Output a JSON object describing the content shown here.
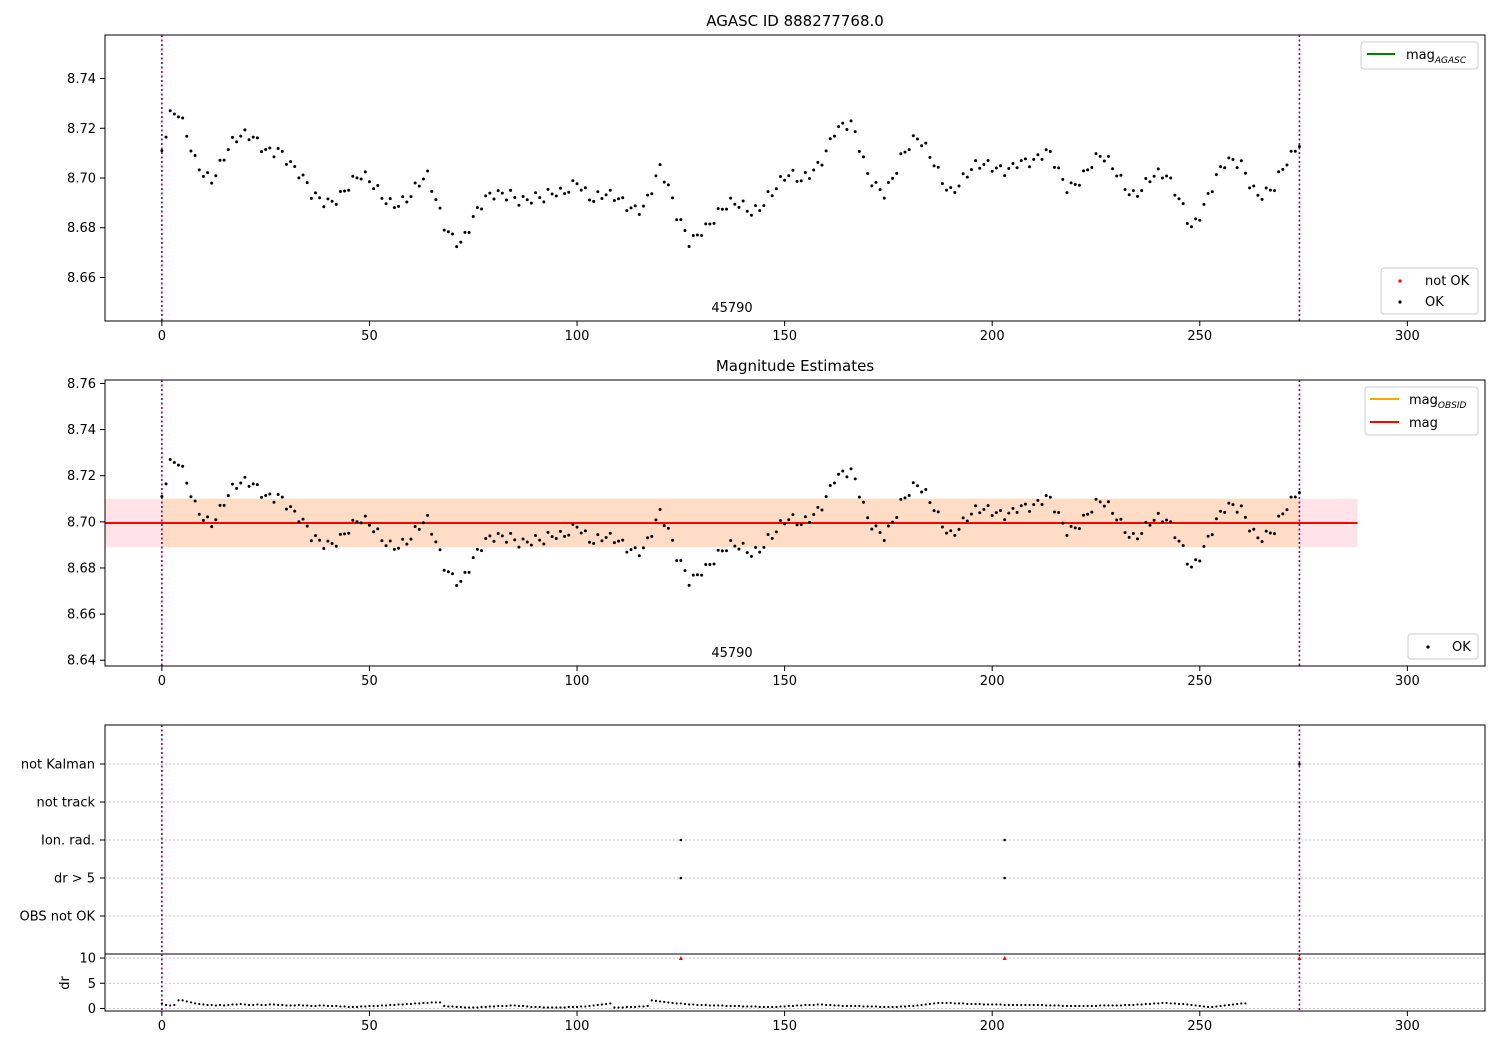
{
  "figure": {
    "background": "#ffffff"
  },
  "chart_data": [
    {
      "type": "scatter",
      "title": "AGASC ID 888277768.0",
      "annotation": "45790",
      "xticks": [
        0,
        50,
        100,
        150,
        200,
        250,
        300
      ],
      "xlim": [
        -13.7,
        318.7
      ],
      "ylim": [
        8.6425,
        8.7575
      ],
      "yticks": [
        "8.66",
        "8.68",
        "8.70",
        "8.72",
        "8.74"
      ],
      "vlines": [
        0,
        274
      ],
      "colors": {
        "ok": "#000000",
        "not_ok": "#ff0000",
        "mag_agasc": "#008000",
        "vline": "#800080"
      },
      "legend_upper": {
        "position": "top-right",
        "entries": [
          {
            "label": "mag",
            "sub": "AGASC",
            "color": "#008000",
            "kind": "line"
          }
        ]
      },
      "legend_lower": {
        "position": "bottom-right",
        "entries": [
          {
            "label": "not OK",
            "color": "#ff0000",
            "kind": "point"
          },
          {
            "label": "OK",
            "color": "#000000",
            "kind": "point"
          }
        ]
      }
    },
    {
      "type": "scatter",
      "title": "Magnitude Estimates",
      "annotation": "45790",
      "xticks": [
        0,
        50,
        100,
        150,
        200,
        250,
        300
      ],
      "xlim": [
        -13.7,
        318.7
      ],
      "ylim": [
        8.6375,
        8.7615
      ],
      "yticks": [
        "8.64",
        "8.66",
        "8.68",
        "8.70",
        "8.72",
        "8.74",
        "8.76"
      ],
      "vlines": [
        0,
        274
      ],
      "mag_line": 8.6995,
      "mag_band": [
        8.689,
        8.71
      ],
      "mag_obsid_line": 8.6995,
      "mag_obsid_band": [
        8.689,
        8.71
      ],
      "band_x_range": [
        -13.7,
        288
      ],
      "colors": {
        "ok": "#000000",
        "mag": "#ff0000",
        "mag_band": "#ffc0cb",
        "mag_obsid": "#ffa500",
        "mag_obsid_band": "#ffdab9",
        "vline": "#800080"
      },
      "legend_upper": {
        "position": "top-right",
        "entries": [
          {
            "label": "mag",
            "sub": "OBSID",
            "color": "#ffa500",
            "kind": "line"
          },
          {
            "label": "mag",
            "sub": "",
            "color": "#ff0000",
            "kind": "line"
          }
        ]
      },
      "legend_lower": {
        "position": "bottom-right",
        "entries": [
          {
            "label": "OK",
            "color": "#000000",
            "kind": "point"
          }
        ]
      }
    },
    {
      "type": "scatter",
      "categories": [
        "not Kalman",
        "not track",
        "Ion. rad.",
        "dr > 5",
        "OBS not OK"
      ],
      "xticks": [
        0,
        50,
        100,
        150,
        200,
        250,
        300
      ],
      "xlim": [
        -13.7,
        318.7
      ],
      "vlines": [
        0,
        274
      ],
      "flags": [
        {
          "category": "not Kalman",
          "x": [
            274
          ]
        },
        {
          "category": "Ion. rad.",
          "x": [
            125,
            203
          ]
        },
        {
          "category": "dr > 5",
          "x": [
            125,
            203
          ]
        }
      ]
    },
    {
      "type": "scatter",
      "ylabel": "dr",
      "xticks": [
        0,
        50,
        100,
        150,
        200,
        250,
        300
      ],
      "xlim": [
        -13.7,
        318.7
      ],
      "ylim": [
        -0.5,
        10.8
      ],
      "yticks": [
        "0",
        "5",
        "10"
      ],
      "vlines": [
        0,
        274
      ],
      "capped_x": [
        125,
        203,
        274
      ],
      "capped_y": 10,
      "dr_values": [
        1.0,
        0.7,
        0.6,
        0.7,
        1.6,
        1.6,
        1.4,
        1.2,
        1.0,
        0.9,
        0.8,
        0.7,
        0.7,
        0.6,
        0.7,
        0.6,
        0.7,
        0.8,
        0.8,
        0.9,
        0.8,
        0.7,
        0.7,
        0.8,
        0.7,
        0.7,
        0.8,
        0.8,
        0.7,
        0.7,
        0.6,
        0.6,
        0.6,
        0.7,
        0.6,
        0.6,
        0.5,
        0.5,
        0.6,
        0.6,
        0.5,
        0.5,
        0.5,
        0.4,
        0.4,
        0.3,
        0.3,
        0.3,
        0.4,
        0.4,
        0.5,
        0.5,
        0.5,
        0.6,
        0.6,
        0.7,
        0.7,
        0.8,
        0.8,
        0.9,
        0.9,
        1.0,
        1.0,
        1.1,
        1.1,
        1.2,
        1.2,
        1.2,
        0.5,
        0.4,
        0.4,
        0.3,
        0.3,
        0.2,
        0.2,
        0.2,
        0.2,
        0.3,
        0.3,
        0.4,
        0.4,
        0.5,
        0.5,
        0.5,
        0.6,
        0.6,
        0.5,
        0.5,
        0.4,
        0.3,
        0.3,
        0.3,
        0.2,
        0.2,
        0.2,
        0.2,
        0.2,
        0.2,
        0.3,
        0.3,
        0.3,
        0.4,
        0.4,
        0.5,
        0.6,
        0.7,
        0.8,
        0.9,
        1.0,
        0.2,
        0.2,
        0.2,
        0.3,
        0.3,
        0.3,
        0.4,
        0.4,
        0.5,
        1.6,
        1.5,
        1.4,
        1.3,
        1.2,
        1.1,
        1.0,
        1.0,
        0.9,
        0.8,
        0.8,
        0.7,
        0.7,
        0.7,
        0.6,
        0.6,
        0.6,
        0.6,
        0.5,
        0.5,
        0.5,
        0.5,
        0.4,
        0.4,
        0.4,
        0.4,
        0.3,
        0.3,
        0.3,
        0.3,
        0.3,
        0.4,
        0.4,
        0.5,
        0.5,
        0.6,
        0.6,
        0.7,
        0.7,
        0.7,
        0.8,
        0.8,
        0.7,
        0.7,
        0.6,
        0.6,
        0.5,
        0.5,
        0.5,
        0.5,
        0.5,
        0.4,
        0.4,
        0.4,
        0.4,
        0.3,
        0.3,
        0.3,
        0.3,
        0.3,
        0.4,
        0.4,
        0.5,
        0.5,
        0.6,
        0.7,
        0.8,
        0.9,
        1.0,
        1.1,
        1.1,
        1.1,
        1.1,
        1.0,
        1.0,
        1.0,
        0.9,
        0.9,
        0.9,
        0.9,
        0.8,
        0.8,
        0.8,
        0.8,
        0.8,
        0.7,
        0.7,
        0.7,
        0.7,
        0.7,
        0.7,
        0.7,
        0.7,
        0.7,
        0.7,
        0.6,
        0.6,
        0.6,
        0.6,
        0.5,
        0.5,
        0.5,
        0.5,
        0.5,
        0.5,
        0.5,
        0.5,
        0.5,
        0.6,
        0.6,
        0.6,
        0.6,
        0.6,
        0.6,
        0.7,
        0.7,
        0.7,
        0.8,
        0.8,
        0.9,
        0.9,
        1.0,
        1.0,
        1.1,
        1.1,
        1.0,
        1.0,
        0.9,
        0.9,
        0.8,
        0.7,
        0.6,
        0.5,
        0.4,
        0.3,
        0.3,
        0.4,
        0.5,
        0.6,
        0.7,
        0.8,
        0.9,
        1.0,
        1.0
      ]
    }
  ]
}
